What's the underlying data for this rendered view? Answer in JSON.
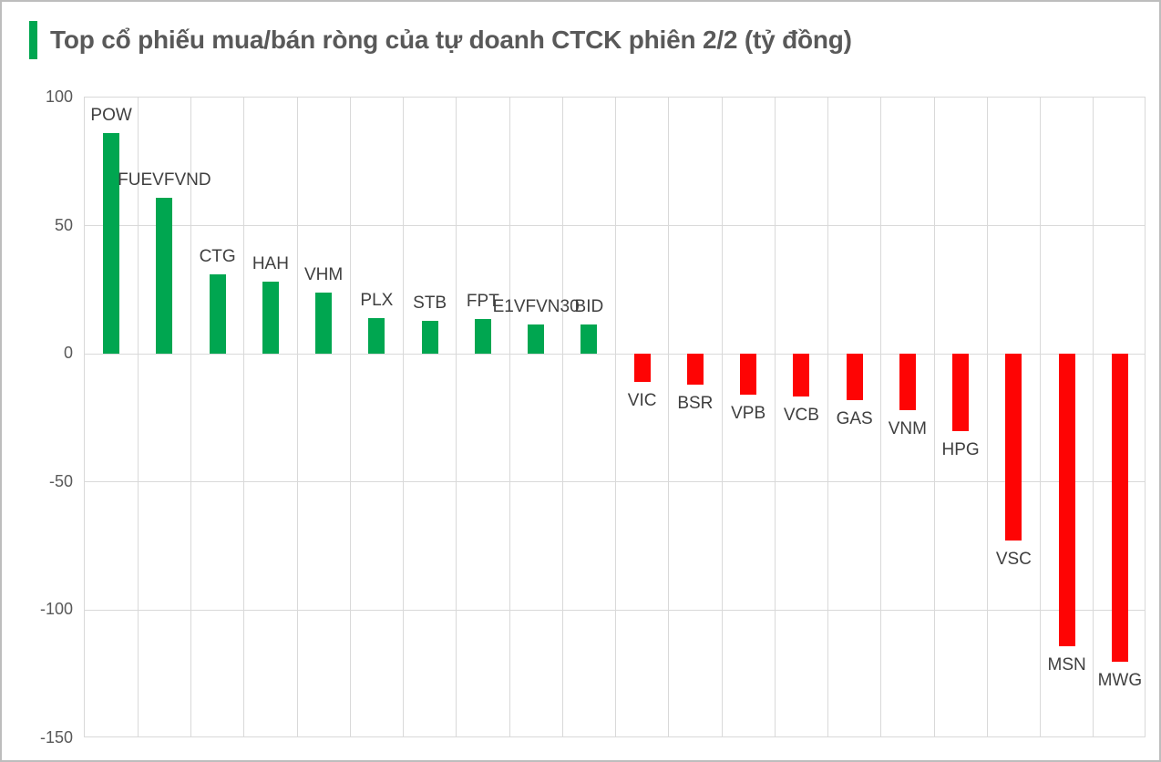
{
  "header": {
    "accent_color": "#00a650",
    "title_color": "#595959"
  },
  "chart_data": {
    "type": "bar",
    "title": "Top cổ phiếu mua/bán ròng của tự doanh CTCK phiên 2/2 (tỷ đồng)",
    "xlabel": "",
    "ylabel": "",
    "categories": [
      "POW",
      "FUEVFVND",
      "CTG",
      "HAH",
      "VHM",
      "PLX",
      "STB",
      "FPT",
      "E1VFVN30",
      "BID",
      "VIC",
      "BSR",
      "VPB",
      "VCB",
      "GAS",
      "VNM",
      "HPG",
      "VSC",
      "MSN",
      "MWG"
    ],
    "values": [
      86,
      61,
      31,
      28,
      24,
      14,
      13,
      13.5,
      11.5,
      11.5,
      -11,
      -12,
      -16,
      -16.5,
      -18,
      -22,
      -30,
      -73,
      -114,
      -120
    ],
    "unit": "tỷ đồng",
    "ylim": [
      -150,
      100
    ],
    "yticks": [
      100,
      50,
      0,
      -50,
      -100,
      -150
    ],
    "grid": true,
    "legend_position": "none",
    "up_color": "#00a650",
    "down_color": "#fe0404",
    "gridline_color": "#d9d9d9",
    "tick_color": "#595959",
    "label_color": "#3f3f3f"
  }
}
